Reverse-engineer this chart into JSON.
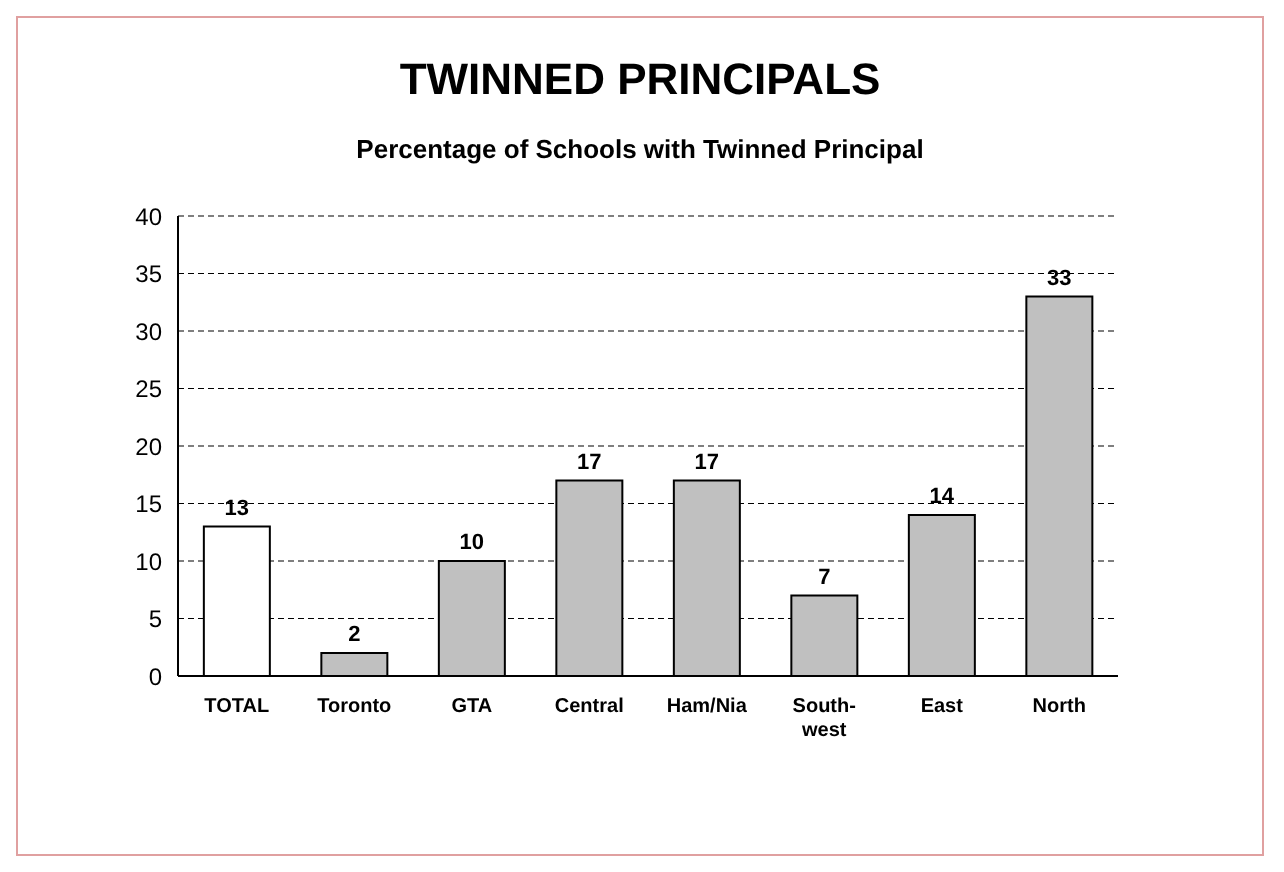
{
  "chart_data": {
    "type": "bar",
    "title": "TWINNED PRINCIPALS",
    "subtitle": "Percentage of Schools with Twinned Principal",
    "categories": [
      "TOTAL",
      "Toronto",
      "GTA",
      "Central",
      "Ham/Nia",
      "South-west",
      "East",
      "North"
    ],
    "values": [
      13,
      2,
      10,
      17,
      17,
      7,
      14,
      33
    ],
    "colors": [
      "#ffffff",
      "#c0c0c0",
      "#c0c0c0",
      "#c0c0c0",
      "#c0c0c0",
      "#c0c0c0",
      "#c0c0c0",
      "#c0c0c0"
    ],
    "ylim": [
      0,
      40
    ],
    "yticks": [
      0,
      5,
      10,
      15,
      20,
      25,
      30,
      35,
      40
    ],
    "grid": "y",
    "data_labels": true
  }
}
